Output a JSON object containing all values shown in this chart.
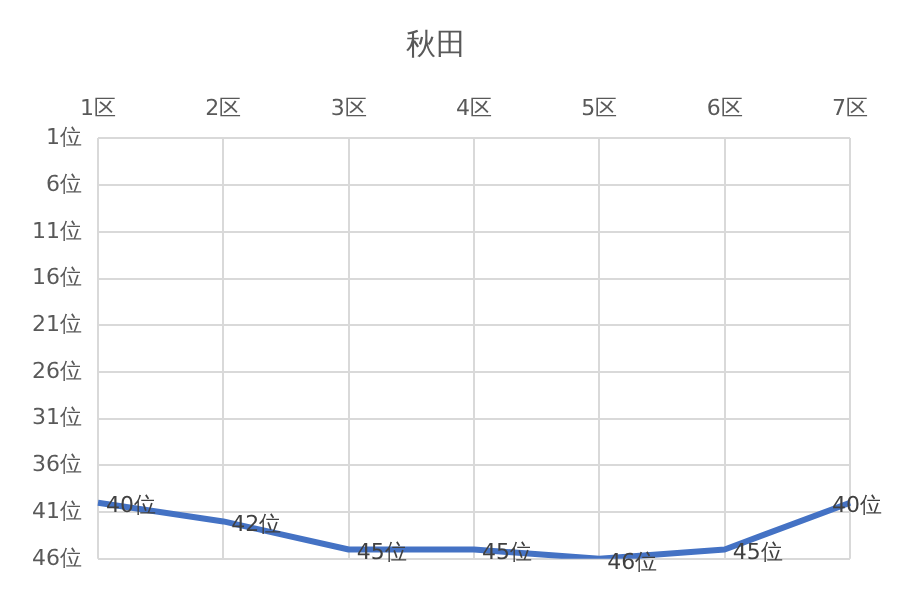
{
  "chart_data": {
    "type": "line",
    "title": "秋田",
    "categories": [
      "1区",
      "2区",
      "3区",
      "4区",
      "5区",
      "6区",
      "7区"
    ],
    "series": [
      {
        "color": "#4472c4",
        "values": [
          40,
          42,
          45,
          45,
          46,
          45,
          40
        ]
      }
    ],
    "value_labels": [
      "40位",
      "42位",
      "45位",
      "45位",
      "46位",
      "45位",
      "40位"
    ],
    "ylim": [
      46,
      1
    ],
    "yticks": [
      {
        "value": 1,
        "label": "1位"
      },
      {
        "value": 6,
        "label": "6位"
      },
      {
        "value": 11,
        "label": "11位"
      },
      {
        "value": 16,
        "label": "16位"
      },
      {
        "value": 21,
        "label": "21位"
      },
      {
        "value": 26,
        "label": "26位"
      },
      {
        "value": 31,
        "label": "31位"
      },
      {
        "value": 36,
        "label": "36位"
      },
      {
        "value": 41,
        "label": "41位"
      },
      {
        "value": 46,
        "label": "46位"
      }
    ],
    "grid": true,
    "legend": false,
    "marker": "none",
    "line_style": "solid"
  }
}
